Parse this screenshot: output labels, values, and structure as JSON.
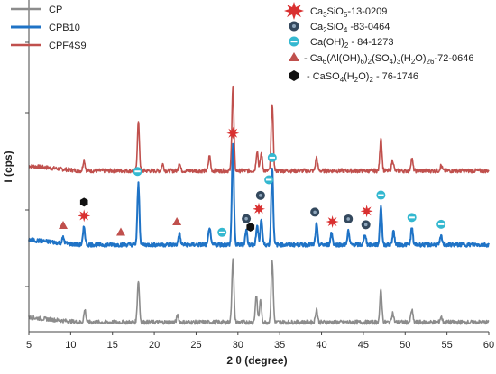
{
  "chart_data": {
    "type": "line",
    "title": "",
    "xlabel": "2 θ (degree)",
    "ylabel": "I (cps)",
    "xlim": [
      5,
      60
    ],
    "xticks": [
      5,
      10,
      15,
      20,
      25,
      30,
      35,
      40,
      45,
      50,
      55,
      60
    ],
    "grid": false,
    "legend_position": "top-left",
    "series": [
      {
        "name": "CP",
        "color": "#8c8c8c",
        "baseline": 6,
        "noise": 6,
        "peaks": [
          [
            11.7,
            18
          ],
          [
            18.1,
            62
          ],
          [
            22.8,
            10
          ],
          [
            29.4,
            95
          ],
          [
            32.2,
            40
          ],
          [
            32.7,
            32
          ],
          [
            34.1,
            92
          ],
          [
            39.4,
            20
          ],
          [
            47.1,
            48
          ],
          [
            48.5,
            14
          ],
          [
            50.8,
            18
          ],
          [
            54.3,
            8
          ]
        ]
      },
      {
        "name": "CPB10",
        "color": "#1f73c6",
        "baseline": 6,
        "noise": 6,
        "peaks": [
          [
            9.1,
            8
          ],
          [
            11.6,
            26
          ],
          [
            18.1,
            90
          ],
          [
            23.0,
            16
          ],
          [
            26.6,
            26
          ],
          [
            29.4,
            150
          ],
          [
            31.0,
            22
          ],
          [
            32.3,
            28
          ],
          [
            32.8,
            38
          ],
          [
            34.1,
            115
          ],
          [
            39.4,
            30
          ],
          [
            41.2,
            18
          ],
          [
            43.2,
            20
          ],
          [
            45.2,
            16
          ],
          [
            47.1,
            58
          ],
          [
            48.6,
            20
          ],
          [
            50.8,
            24
          ],
          [
            54.3,
            12
          ]
        ]
      },
      {
        "name": "CPF4S9",
        "color": "#c0504d",
        "baseline": 6,
        "noise": 6,
        "peaks": [
          [
            11.6,
            16
          ],
          [
            18.1,
            72
          ],
          [
            21.0,
            10
          ],
          [
            23.0,
            12
          ],
          [
            26.6,
            22
          ],
          [
            29.4,
            125
          ],
          [
            32.3,
            30
          ],
          [
            32.8,
            26
          ],
          [
            34.1,
            100
          ],
          [
            39.4,
            20
          ],
          [
            47.1,
            50
          ],
          [
            48.5,
            16
          ],
          [
            50.8,
            18
          ],
          [
            54.3,
            8
          ]
        ]
      }
    ],
    "phase_legend": [
      {
        "symbol": "star",
        "color": "#d93030",
        "label": "Ca3SiO5-13-0209"
      },
      {
        "symbol": "dark-circle",
        "color": "#34495e",
        "label": "Ca2SiO4 -83-0464"
      },
      {
        "symbol": "cyan-circle",
        "color": "#34b8d0",
        "label": "Ca(OH)2 - 84-1273"
      },
      {
        "symbol": "triangle",
        "color": "#c0504d",
        "label": "Ca6(Al(OH)6)2(SO4)3(H2O)26-72-0646"
      },
      {
        "symbol": "hexagon",
        "color": "#111111",
        "label": "CaSO4(H2O)2 - 76-1746"
      }
    ],
    "phase_markers": [
      {
        "phase": "triangle",
        "x": 9.1
      },
      {
        "phase": "star",
        "x": 11.6
      },
      {
        "phase": "hexagon",
        "x": 11.6
      },
      {
        "phase": "triangle",
        "x": 16.0
      },
      {
        "phase": "cyan-circle",
        "x": 18.0
      },
      {
        "phase": "triangle",
        "x": 22.7
      },
      {
        "phase": "cyan-circle",
        "x": 28.1
      },
      {
        "phase": "star",
        "x": 29.4
      },
      {
        "phase": "dark-circle",
        "x": 31.0
      },
      {
        "phase": "hexagon",
        "x": 31.5
      },
      {
        "phase": "star",
        "x": 32.5
      },
      {
        "phase": "dark-circle",
        "x": 32.7
      },
      {
        "phase": "cyan-circle",
        "x": 33.7
      },
      {
        "phase": "cyan-circle",
        "x": 34.1
      },
      {
        "phase": "dark-circle",
        "x": 39.2
      },
      {
        "phase": "star",
        "x": 41.3
      },
      {
        "phase": "dark-circle",
        "x": 43.2
      },
      {
        "phase": "dark-circle",
        "x": 45.3
      },
      {
        "phase": "star",
        "x": 45.4
      },
      {
        "phase": "cyan-circle",
        "x": 47.1
      },
      {
        "phase": "cyan-circle",
        "x": 50.8
      },
      {
        "phase": "cyan-circle",
        "x": 54.3
      }
    ]
  }
}
